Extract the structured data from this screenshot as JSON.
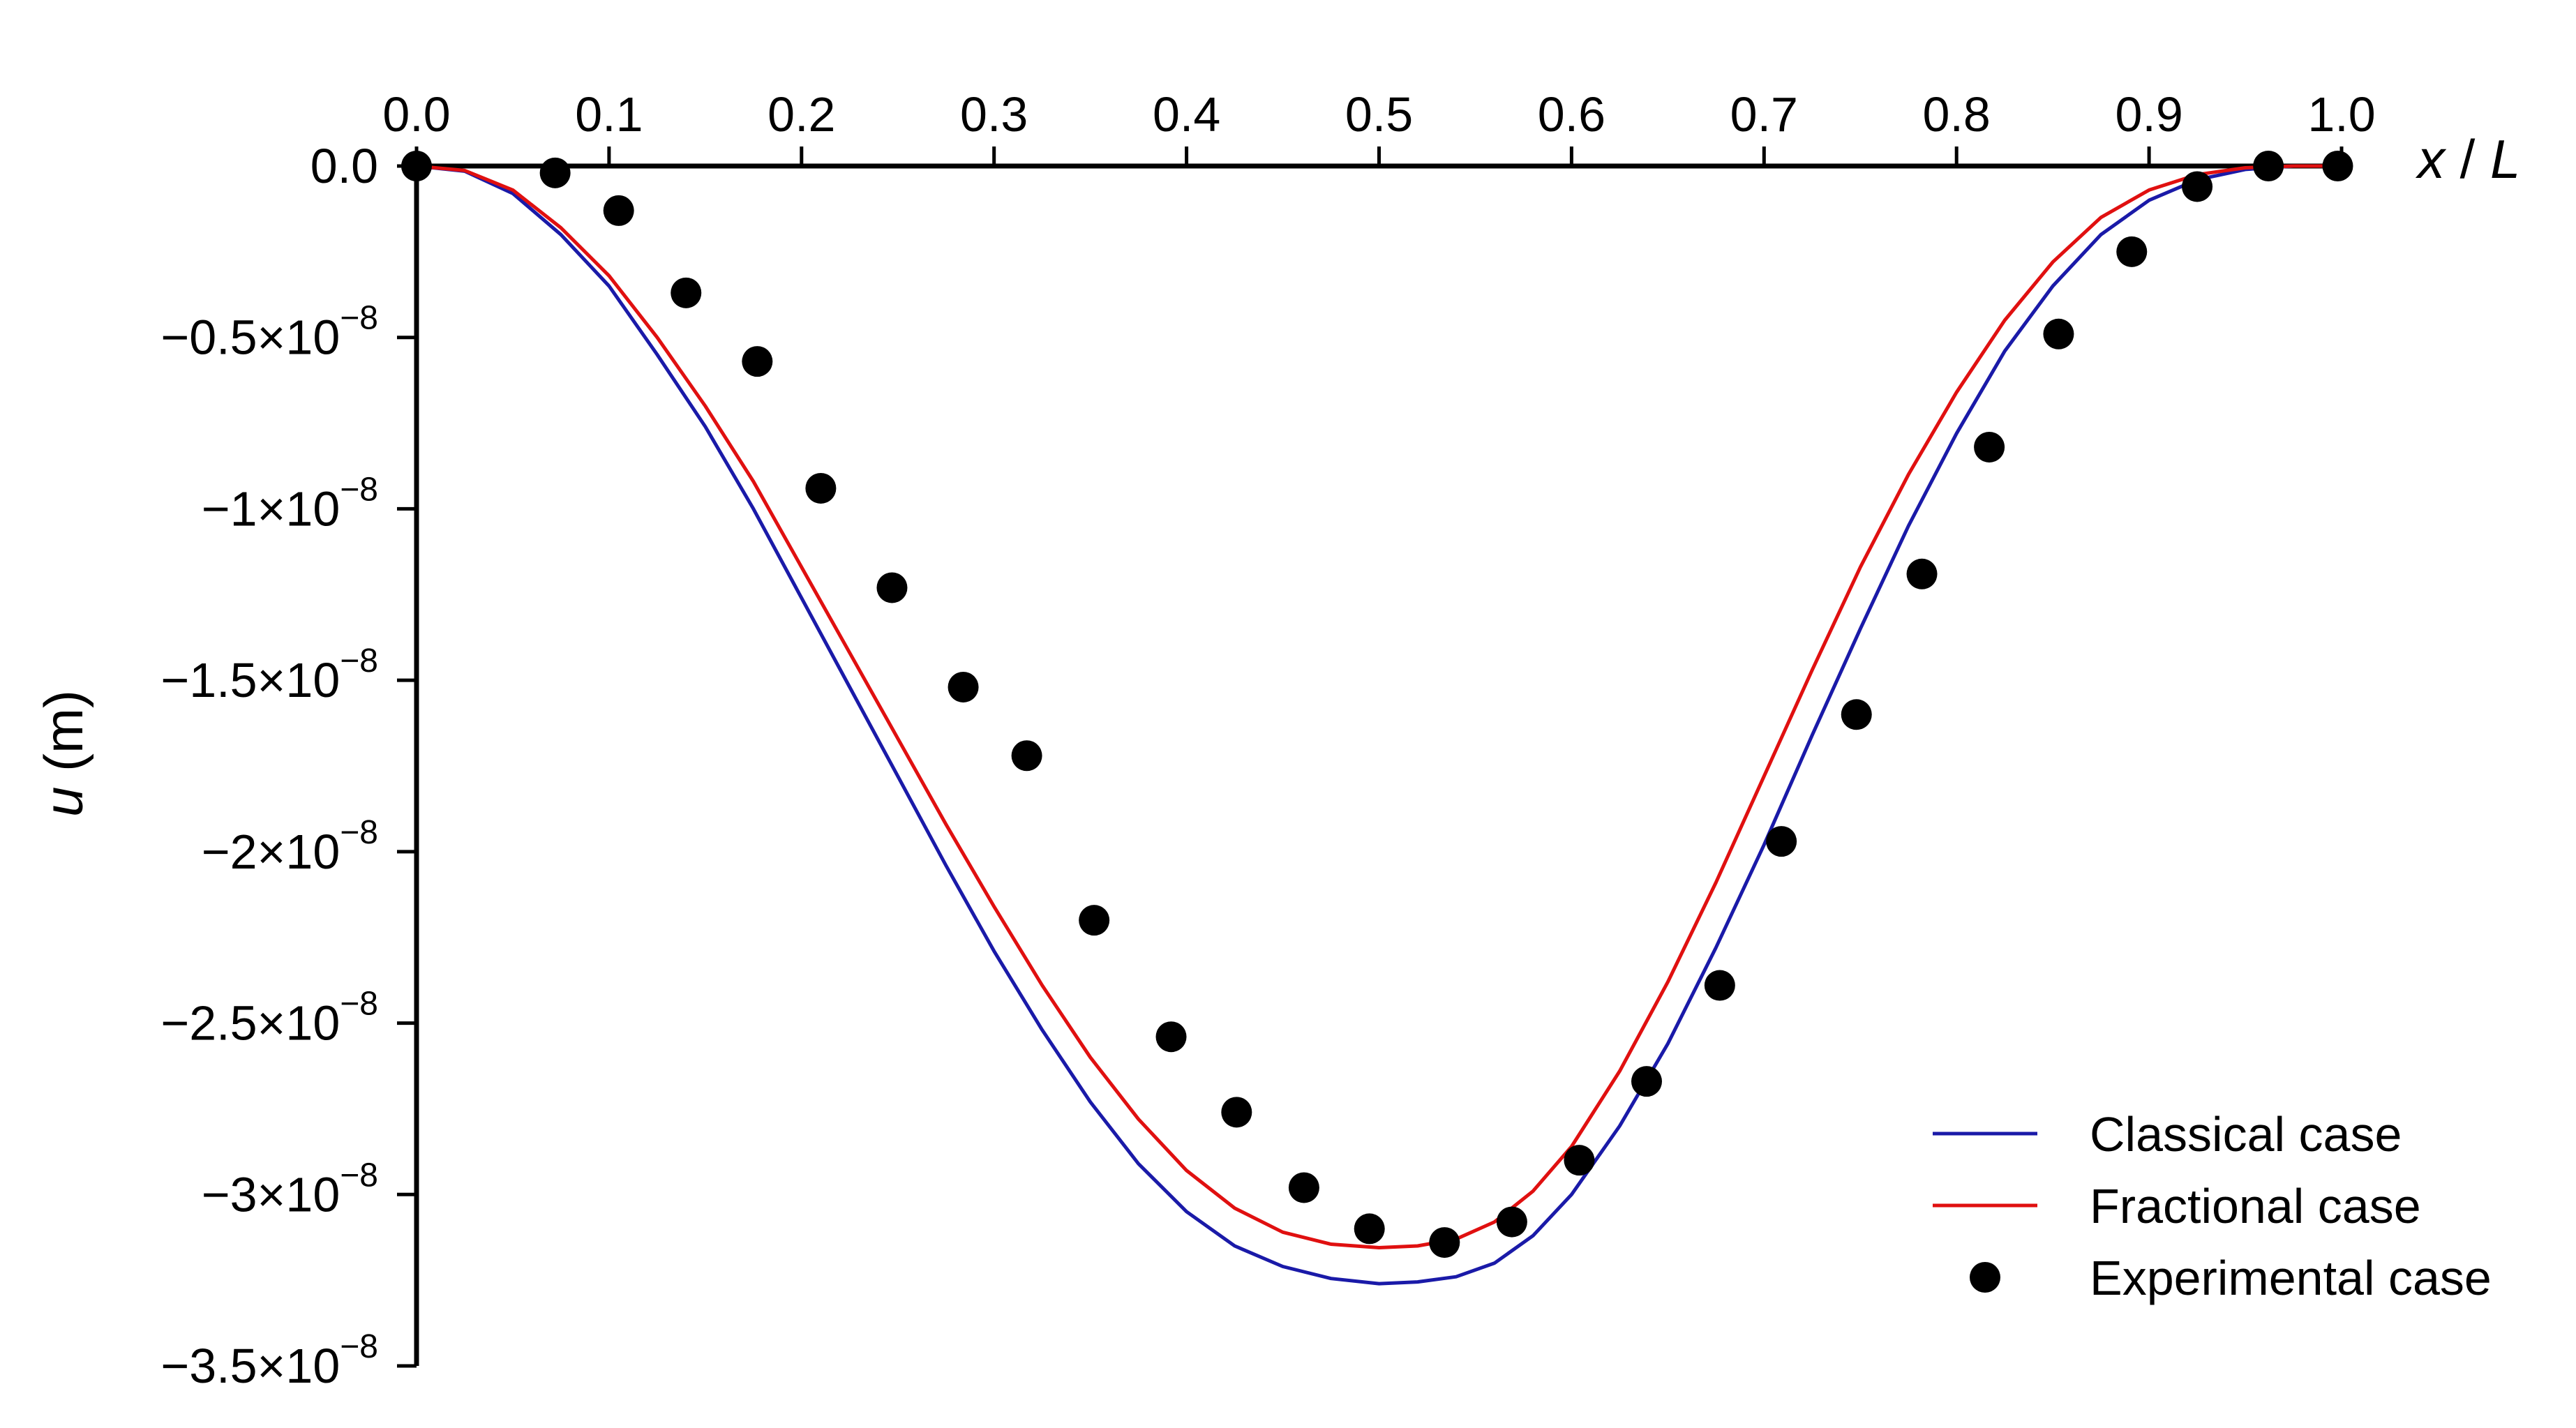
{
  "chart_data": {
    "type": "line",
    "title": "",
    "xlabel": {
      "var": "x",
      "slash": " / ",
      "var2": "L"
    },
    "ylabel": {
      "var": "u",
      "unit": " (m)"
    },
    "xlim": [
      0,
      1
    ],
    "ylim": [
      -3.5e-08,
      0
    ],
    "grid": false,
    "legend_position": "bottom-right",
    "x_ticks": [
      0.0,
      0.1,
      0.2,
      0.3,
      0.4,
      0.5,
      0.6,
      0.7,
      0.8,
      0.9,
      1.0
    ],
    "x_tick_labels": [
      "0.0",
      "0.1",
      "0.2",
      "0.3",
      "0.4",
      "0.5",
      "0.6",
      "0.7",
      "0.8",
      "0.9",
      "1.0"
    ],
    "y_ticks": [
      {
        "value": 0,
        "base": "0.0",
        "exp": ""
      },
      {
        "value": -5e-09,
        "base": "−0.5×10",
        "exp": "−8"
      },
      {
        "value": -1e-08,
        "base": "−1×10",
        "exp": "−8"
      },
      {
        "value": -1.5e-08,
        "base": "−1.5×10",
        "exp": "−8"
      },
      {
        "value": -2e-08,
        "base": "−2×10",
        "exp": "−8"
      },
      {
        "value": -2.5e-08,
        "base": "−2.5×10",
        "exp": "−8"
      },
      {
        "value": -3e-08,
        "base": "−3×10",
        "exp": "−8"
      },
      {
        "value": -3.5e-08,
        "base": "−3.5×10",
        "exp": "−8"
      }
    ],
    "series": [
      {
        "name": "Classical case",
        "kind": "line",
        "color": "#1a1aa8",
        "x": [
          0,
          0.025,
          0.05,
          0.075,
          0.1,
          0.125,
          0.15,
          0.175,
          0.2,
          0.225,
          0.25,
          0.275,
          0.3,
          0.325,
          0.35,
          0.375,
          0.4,
          0.425,
          0.45,
          0.475,
          0.5,
          0.52,
          0.54,
          0.56,
          0.58,
          0.6,
          0.625,
          0.65,
          0.675,
          0.7,
          0.725,
          0.75,
          0.775,
          0.8,
          0.825,
          0.85,
          0.875,
          0.9,
          0.925,
          0.95,
          0.975,
          1.0
        ],
        "y": [
          0,
          -1.5e-10,
          -8e-10,
          -2e-09,
          -3.5e-09,
          -5.5e-09,
          -7.6e-09,
          -1e-08,
          -1.26e-08,
          -1.52e-08,
          -1.78e-08,
          -2.04e-08,
          -2.29e-08,
          -2.52e-08,
          -2.73e-08,
          -2.91e-08,
          -3.05e-08,
          -3.15e-08,
          -3.21e-08,
          -3.245e-08,
          -3.26e-08,
          -3.255e-08,
          -3.24e-08,
          -3.2e-08,
          -3.12e-08,
          -3e-08,
          -2.8e-08,
          -2.56e-08,
          -2.28e-08,
          -1.98e-08,
          -1.66e-08,
          -1.35e-08,
          -1.05e-08,
          -7.8e-09,
          -5.4e-09,
          -3.5e-09,
          -2e-09,
          -1e-09,
          -4e-10,
          -1e-10,
          0,
          0
        ]
      },
      {
        "name": "Fractional case",
        "kind": "line",
        "color": "#e01010",
        "x": [
          0,
          0.025,
          0.05,
          0.075,
          0.1,
          0.125,
          0.15,
          0.175,
          0.2,
          0.225,
          0.25,
          0.275,
          0.3,
          0.325,
          0.35,
          0.375,
          0.4,
          0.425,
          0.45,
          0.475,
          0.5,
          0.52,
          0.54,
          0.56,
          0.58,
          0.6,
          0.625,
          0.65,
          0.675,
          0.7,
          0.725,
          0.75,
          0.775,
          0.8,
          0.825,
          0.85,
          0.875,
          0.9,
          0.925,
          0.95,
          0.975,
          1.0
        ],
        "y": [
          0,
          -1.3e-10,
          -7e-10,
          -1.8e-09,
          -3.2e-09,
          -5e-09,
          -7e-09,
          -9.2e-09,
          -1.17e-08,
          -1.42e-08,
          -1.67e-08,
          -1.92e-08,
          -2.16e-08,
          -2.39e-08,
          -2.6e-08,
          -2.78e-08,
          -2.93e-08,
          -3.04e-08,
          -3.11e-08,
          -3.145e-08,
          -3.155e-08,
          -3.15e-08,
          -3.13e-08,
          -3.08e-08,
          -2.99e-08,
          -2.86e-08,
          -2.64e-08,
          -2.38e-08,
          -2.09e-08,
          -1.78e-08,
          -1.47e-08,
          -1.17e-08,
          -9e-09,
          -6.6e-09,
          -4.5e-09,
          -2.8e-09,
          -1.5e-09,
          -7e-10,
          -2.5e-10,
          -5e-11,
          0,
          0
        ]
      },
      {
        "name": "Experimental case",
        "kind": "scatter",
        "color": "#000000",
        "x": [
          0.0,
          0.072,
          0.105,
          0.14,
          0.177,
          0.21,
          0.247,
          0.284,
          0.317,
          0.352,
          0.392,
          0.426,
          0.461,
          0.495,
          0.534,
          0.569,
          0.604,
          0.639,
          0.677,
          0.709,
          0.748,
          0.782,
          0.817,
          0.853,
          0.891,
          0.925,
          0.962,
          0.998
        ],
        "y": [
          0.0,
          -2e-10,
          -1.3e-09,
          -3.7e-09,
          -5.7e-09,
          -9.4e-09,
          -1.23e-08,
          -1.52e-08,
          -1.72e-08,
          -2.2e-08,
          -2.54e-08,
          -2.76e-08,
          -2.98e-08,
          -3.1e-08,
          -3.14e-08,
          -3.08e-08,
          -2.9e-08,
          -2.67e-08,
          -2.39e-08,
          -1.97e-08,
          -1.6e-08,
          -1.19e-08,
          -8.2e-09,
          -4.9e-09,
          -2.5e-09,
          -6e-10,
          0.0,
          0.0
        ]
      }
    ]
  }
}
